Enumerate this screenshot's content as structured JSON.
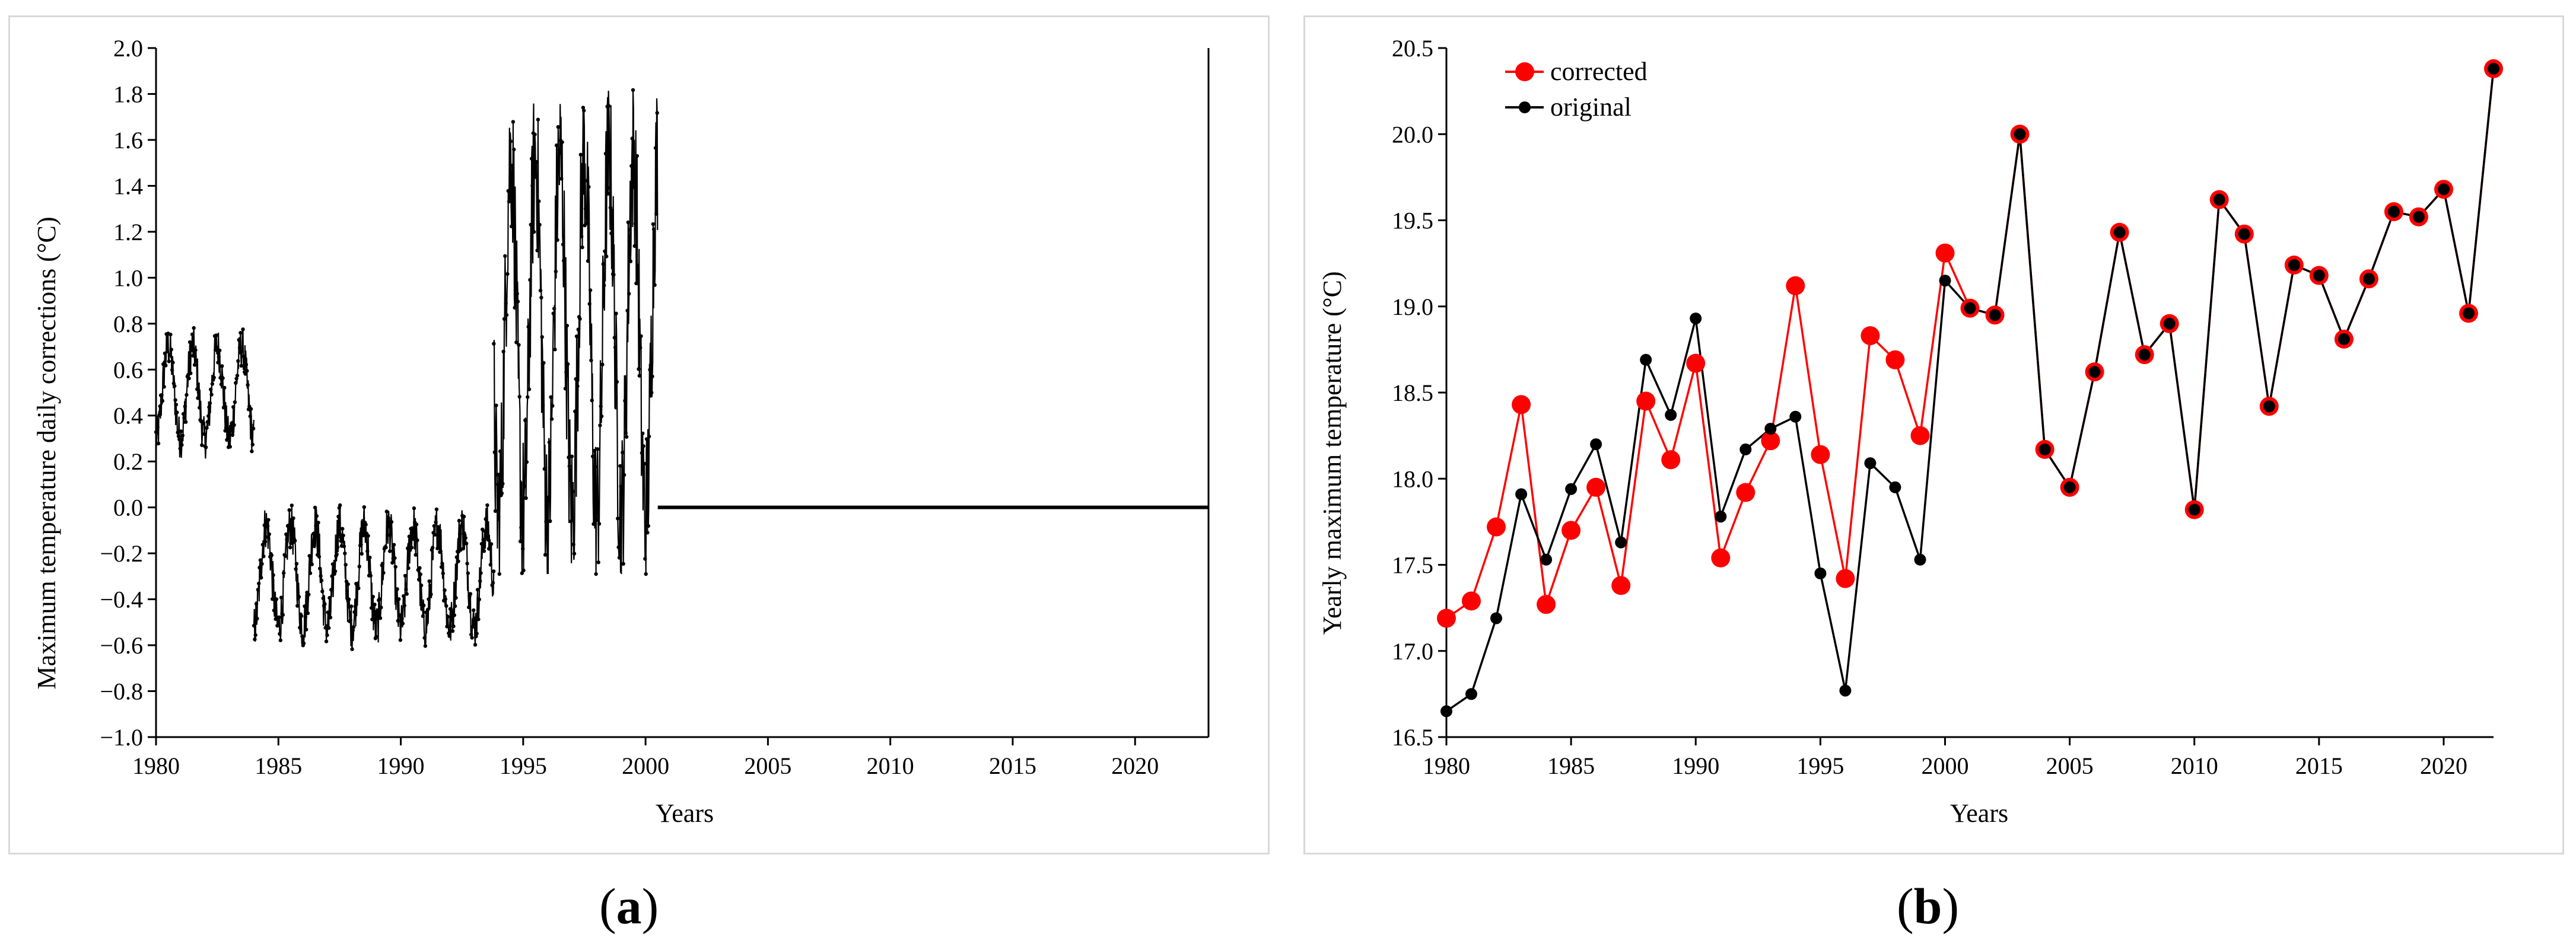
{
  "chart_data": [
    {
      "type": "line",
      "panel": "a",
      "title": "",
      "xlabel": "Years",
      "ylabel": "Maximum temperature daily corrections (°C)",
      "xlim": [
        1980,
        2023
      ],
      "ylim": [
        -1.0,
        2.0
      ],
      "x_ticks": [
        "1980",
        "1985",
        "1990",
        "1995",
        "2000",
        "2005",
        "2010",
        "2015",
        "2020"
      ],
      "y_ticks": [
        "−1.0",
        "−0.8",
        "−0.6",
        "−0.4",
        "−0.2",
        "0.0",
        "0.2",
        "0.4",
        "0.6",
        "0.8",
        "1.0",
        "1.2",
        "1.4",
        "1.6",
        "1.8",
        "2.0"
      ],
      "series": [
        {
          "name": "daily corrections",
          "color": "#000000",
          "segments": [
            {
              "from": 1980.0,
              "to": 1984.0,
              "baseline": 0.5,
              "amplitude": 0.2,
              "min": 0.17,
              "max": 0.89
            },
            {
              "from": 1984.0,
              "to": 1993.8,
              "baseline": -0.3,
              "amplitude": 0.22,
              "min": -0.77,
              "max": 0.07
            },
            {
              "from": 1993.8,
              "to": 2000.5,
              "baseline": 0.75,
              "amplitude": 0.78,
              "min": -0.29,
              "max": 1.88
            },
            {
              "from": 2000.5,
              "to": 2023.0,
              "baseline": 0.0,
              "amplitude": 0.0,
              "min": 0.0,
              "max": 0.0
            }
          ]
        }
      ],
      "caption": {
        "open": "(",
        "letter": "a",
        "close": ")"
      }
    },
    {
      "type": "line",
      "panel": "b",
      "title": "",
      "xlabel": "Years",
      "ylabel": "Yearly maximum temperature (°C)",
      "xlim": [
        1980,
        2022
      ],
      "ylim": [
        16.5,
        20.5
      ],
      "x_ticks": [
        "1980",
        "1985",
        "1990",
        "1995",
        "2000",
        "2005",
        "2010",
        "2015",
        "2020"
      ],
      "y_ticks": [
        "16.5",
        "17.0",
        "17.5",
        "18.0",
        "18.5",
        "19.0",
        "19.5",
        "20.0",
        "20.5"
      ],
      "legend_position": "top-left",
      "x": [
        1980,
        1981,
        1982,
        1983,
        1984,
        1985,
        1986,
        1987,
        1988,
        1989,
        1990,
        1991,
        1992,
        1993,
        1994,
        1995,
        1996,
        1997,
        1998,
        1999,
        2000,
        2001,
        2002,
        2003,
        2004,
        2005,
        2006,
        2007,
        2008,
        2009,
        2010,
        2011,
        2012,
        2013,
        2014,
        2015,
        2016,
        2017,
        2018,
        2019,
        2020,
        2021,
        2022
      ],
      "series": [
        {
          "name": "corrected",
          "color": "#ff0000",
          "values": [
            17.19,
            17.29,
            17.72,
            18.43,
            17.27,
            17.7,
            17.95,
            17.38,
            18.45,
            18.11,
            18.67,
            17.54,
            17.92,
            18.22,
            19.12,
            18.14,
            17.42,
            18.83,
            18.69,
            18.25,
            19.31,
            18.99,
            18.95,
            20.0,
            18.17,
            17.95,
            18.62,
            19.43,
            18.72,
            18.9,
            17.82,
            19.62,
            19.42,
            18.42,
            19.24,
            19.18,
            18.81,
            19.16,
            19.55,
            19.52,
            19.68,
            18.96,
            20.38
          ]
        },
        {
          "name": "original",
          "color": "#000000",
          "values": [
            16.65,
            16.75,
            17.19,
            17.91,
            17.53,
            17.94,
            18.2,
            17.63,
            18.69,
            18.37,
            18.93,
            17.78,
            18.17,
            18.29,
            18.36,
            17.45,
            16.77,
            18.09,
            17.95,
            17.53,
            19.15,
            18.99,
            18.95,
            20.0,
            18.17,
            17.95,
            18.62,
            19.43,
            18.72,
            18.9,
            17.82,
            19.62,
            19.42,
            18.42,
            19.24,
            19.18,
            18.81,
            19.16,
            19.55,
            19.52,
            19.68,
            18.96,
            20.38
          ]
        }
      ],
      "caption": {
        "open": "(",
        "letter": "b",
        "close": ")"
      }
    }
  ]
}
